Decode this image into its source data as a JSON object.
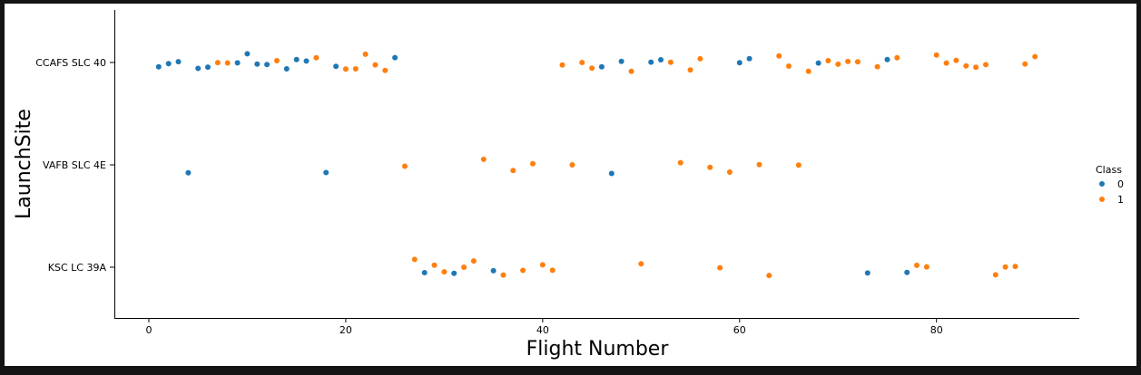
{
  "chart_data": {
    "type": "scatter",
    "xlabel": "Flight Number",
    "ylabel": "LaunchSite",
    "xlim": [
      -3.5,
      94.5
    ],
    "x_ticks": [
      0,
      20,
      40,
      60,
      80
    ],
    "categories": [
      "CCAFS SLC 40",
      "VAFB SLC 4E",
      "KSC LC 39A"
    ],
    "grid": false,
    "legend": {
      "title": "Class",
      "placement": "right",
      "entries": [
        {
          "label": "0",
          "color": "#1f77b4"
        },
        {
          "label": "1",
          "color": "#ff7f0e"
        }
      ]
    },
    "series": [
      {
        "name": "0",
        "color": "#1f77b4",
        "points": [
          {
            "x": 1,
            "site": "CCAFS SLC 40"
          },
          {
            "x": 2,
            "site": "CCAFS SLC 40"
          },
          {
            "x": 3,
            "site": "CCAFS SLC 40"
          },
          {
            "x": 5,
            "site": "CCAFS SLC 40"
          },
          {
            "x": 6,
            "site": "CCAFS SLC 40"
          },
          {
            "x": 9,
            "site": "CCAFS SLC 40"
          },
          {
            "x": 10,
            "site": "CCAFS SLC 40"
          },
          {
            "x": 11,
            "site": "CCAFS SLC 40"
          },
          {
            "x": 12,
            "site": "CCAFS SLC 40"
          },
          {
            "x": 14,
            "site": "CCAFS SLC 40"
          },
          {
            "x": 15,
            "site": "CCAFS SLC 40"
          },
          {
            "x": 16,
            "site": "CCAFS SLC 40"
          },
          {
            "x": 19,
            "site": "CCAFS SLC 40"
          },
          {
            "x": 25,
            "site": "CCAFS SLC 40"
          },
          {
            "x": 46,
            "site": "CCAFS SLC 40"
          },
          {
            "x": 48,
            "site": "CCAFS SLC 40"
          },
          {
            "x": 51,
            "site": "CCAFS SLC 40"
          },
          {
            "x": 52,
            "site": "CCAFS SLC 40"
          },
          {
            "x": 60,
            "site": "CCAFS SLC 40"
          },
          {
            "x": 61,
            "site": "CCAFS SLC 40"
          },
          {
            "x": 68,
            "site": "CCAFS SLC 40"
          },
          {
            "x": 75,
            "site": "CCAFS SLC 40"
          },
          {
            "x": 4,
            "site": "VAFB SLC 4E"
          },
          {
            "x": 18,
            "site": "VAFB SLC 4E"
          },
          {
            "x": 47,
            "site": "VAFB SLC 4E"
          },
          {
            "x": 28,
            "site": "KSC LC 39A"
          },
          {
            "x": 31,
            "site": "KSC LC 39A"
          },
          {
            "x": 35,
            "site": "KSC LC 39A"
          },
          {
            "x": 73,
            "site": "KSC LC 39A"
          },
          {
            "x": 77,
            "site": "KSC LC 39A"
          }
        ]
      },
      {
        "name": "1",
        "color": "#ff7f0e",
        "points": [
          {
            "x": 7,
            "site": "CCAFS SLC 40"
          },
          {
            "x": 8,
            "site": "CCAFS SLC 40"
          },
          {
            "x": 13,
            "site": "CCAFS SLC 40"
          },
          {
            "x": 17,
            "site": "CCAFS SLC 40"
          },
          {
            "x": 20,
            "site": "CCAFS SLC 40"
          },
          {
            "x": 21,
            "site": "CCAFS SLC 40"
          },
          {
            "x": 22,
            "site": "CCAFS SLC 40"
          },
          {
            "x": 23,
            "site": "CCAFS SLC 40"
          },
          {
            "x": 24,
            "site": "CCAFS SLC 40"
          },
          {
            "x": 42,
            "site": "CCAFS SLC 40"
          },
          {
            "x": 44,
            "site": "CCAFS SLC 40"
          },
          {
            "x": 45,
            "site": "CCAFS SLC 40"
          },
          {
            "x": 49,
            "site": "CCAFS SLC 40"
          },
          {
            "x": 53,
            "site": "CCAFS SLC 40"
          },
          {
            "x": 55,
            "site": "CCAFS SLC 40"
          },
          {
            "x": 56,
            "site": "CCAFS SLC 40"
          },
          {
            "x": 64,
            "site": "CCAFS SLC 40"
          },
          {
            "x": 65,
            "site": "CCAFS SLC 40"
          },
          {
            "x": 67,
            "site": "CCAFS SLC 40"
          },
          {
            "x": 69,
            "site": "CCAFS SLC 40"
          },
          {
            "x": 70,
            "site": "CCAFS SLC 40"
          },
          {
            "x": 71,
            "site": "CCAFS SLC 40"
          },
          {
            "x": 72,
            "site": "CCAFS SLC 40"
          },
          {
            "x": 74,
            "site": "CCAFS SLC 40"
          },
          {
            "x": 76,
            "site": "CCAFS SLC 40"
          },
          {
            "x": 80,
            "site": "CCAFS SLC 40"
          },
          {
            "x": 81,
            "site": "CCAFS SLC 40"
          },
          {
            "x": 82,
            "site": "CCAFS SLC 40"
          },
          {
            "x": 83,
            "site": "CCAFS SLC 40"
          },
          {
            "x": 84,
            "site": "CCAFS SLC 40"
          },
          {
            "x": 85,
            "site": "CCAFS SLC 40"
          },
          {
            "x": 89,
            "site": "CCAFS SLC 40"
          },
          {
            "x": 90,
            "site": "CCAFS SLC 40"
          },
          {
            "x": 26,
            "site": "VAFB SLC 4E"
          },
          {
            "x": 34,
            "site": "VAFB SLC 4E"
          },
          {
            "x": 37,
            "site": "VAFB SLC 4E"
          },
          {
            "x": 39,
            "site": "VAFB SLC 4E"
          },
          {
            "x": 43,
            "site": "VAFB SLC 4E"
          },
          {
            "x": 54,
            "site": "VAFB SLC 4E"
          },
          {
            "x": 57,
            "site": "VAFB SLC 4E"
          },
          {
            "x": 59,
            "site": "VAFB SLC 4E"
          },
          {
            "x": 62,
            "site": "VAFB SLC 4E"
          },
          {
            "x": 66,
            "site": "VAFB SLC 4E"
          },
          {
            "x": 27,
            "site": "KSC LC 39A"
          },
          {
            "x": 29,
            "site": "KSC LC 39A"
          },
          {
            "x": 30,
            "site": "KSC LC 39A"
          },
          {
            "x": 32,
            "site": "KSC LC 39A"
          },
          {
            "x": 33,
            "site": "KSC LC 39A"
          },
          {
            "x": 36,
            "site": "KSC LC 39A"
          },
          {
            "x": 38,
            "site": "KSC LC 39A"
          },
          {
            "x": 40,
            "site": "KSC LC 39A"
          },
          {
            "x": 41,
            "site": "KSC LC 39A"
          },
          {
            "x": 50,
            "site": "KSC LC 39A"
          },
          {
            "x": 58,
            "site": "KSC LC 39A"
          },
          {
            "x": 63,
            "site": "KSC LC 39A"
          },
          {
            "x": 78,
            "site": "KSC LC 39A"
          },
          {
            "x": 79,
            "site": "KSC LC 39A"
          },
          {
            "x": 86,
            "site": "KSC LC 39A"
          },
          {
            "x": 87,
            "site": "KSC LC 39A"
          },
          {
            "x": 88,
            "site": "KSC LC 39A"
          }
        ]
      }
    ]
  }
}
